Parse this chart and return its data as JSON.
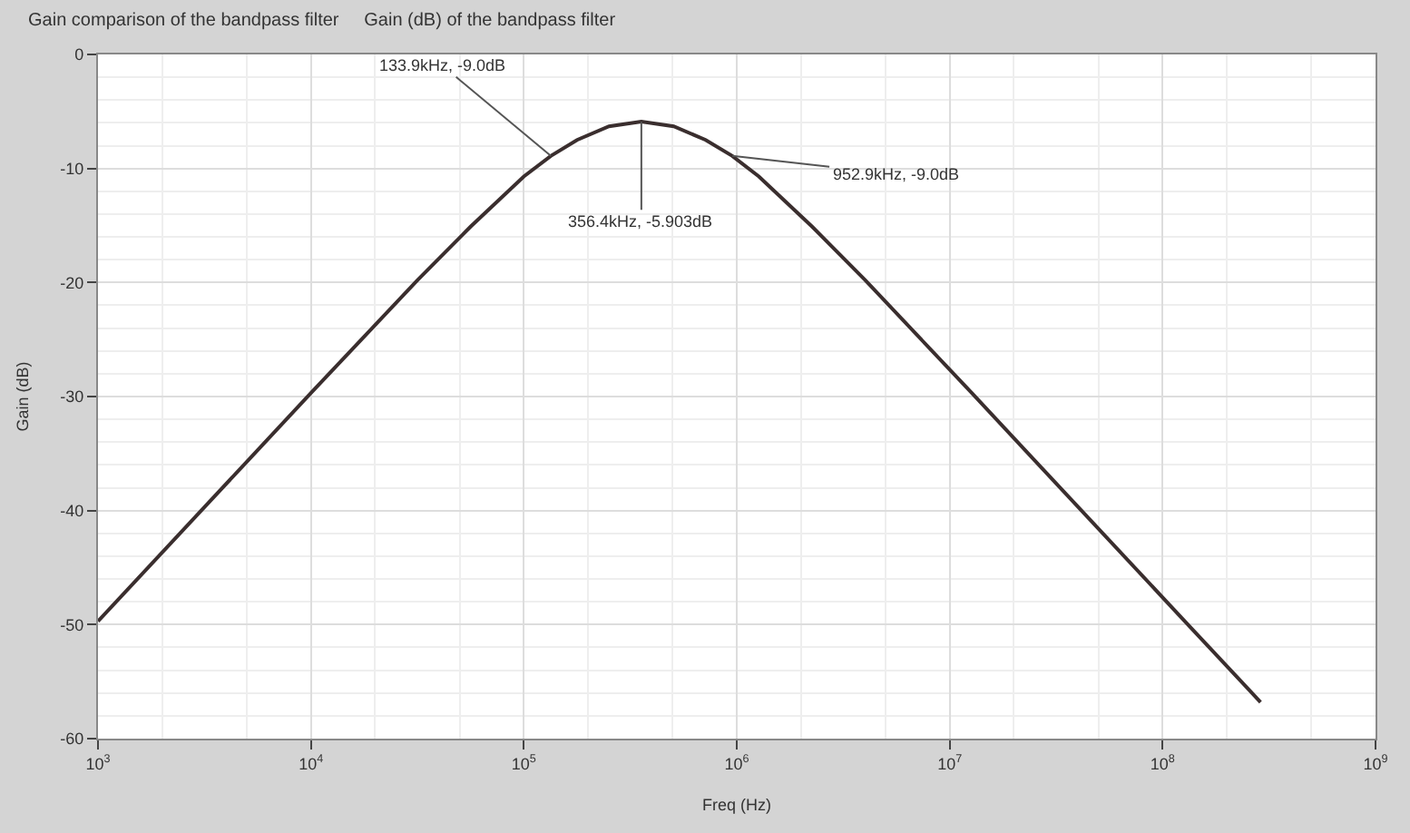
{
  "chart_data": {
    "type": "line",
    "title": "Gain comparison of the bandpass filter",
    "subtitle": "Gain (dB) of the bandpass filter",
    "xlabel": "Freq (Hz)",
    "ylabel": "Gain (dB)",
    "x": [
      1000,
      3162,
      10000,
      31623,
      56234,
      100000,
      133900,
      177828,
      251189,
      356400,
      505800,
      714500,
      952900,
      1270000,
      2259000,
      4018000,
      12710000,
      40180000,
      127100000,
      288400000
    ],
    "series": [
      {
        "color": "#3a2e2e",
        "values": [
          -49.7,
          -39.7,
          -29.7,
          -19.8,
          -15.1,
          -10.7,
          -8.9,
          -7.5,
          -6.3,
          -5.9,
          -6.3,
          -7.5,
          -8.9,
          -10.7,
          -15.1,
          -19.8,
          -29.7,
          -39.7,
          -49.7,
          -56.8
        ]
      }
    ],
    "annotations": [
      {
        "text": "133.9kHz, -9.0dB",
        "x": 133900,
        "y": -8.9
      },
      {
        "text": "356.4kHz, -5.903dB",
        "x": 356400,
        "y": -5.9
      },
      {
        "text": "952.9kHz, -9.0dB",
        "x": 952900,
        "y": -8.9
      }
    ],
    "log": "x",
    "xlim": [
      1000,
      1000000000
    ],
    "xticks": [
      {
        "value": 1000,
        "label": "10$^{3}$"
      },
      {
        "value": 10000,
        "label": "10$^{4}$"
      },
      {
        "value": 100000,
        "label": "10$^{5}$"
      },
      {
        "value": 1000000,
        "label": "10$^{6}$"
      },
      {
        "value": 10000000,
        "label": "10$^{7}$"
      },
      {
        "value": 100000000,
        "label": "10$^{8}$"
      },
      {
        "value": 1000000000,
        "label": "10$^{9}$"
      }
    ],
    "ylim": [
      -60,
      0
    ],
    "yticks": [
      0,
      -10,
      -20,
      -30,
      -40,
      -50,
      -60
    ],
    "grid": true,
    "marker": "none",
    "line_style": "solid"
  }
}
